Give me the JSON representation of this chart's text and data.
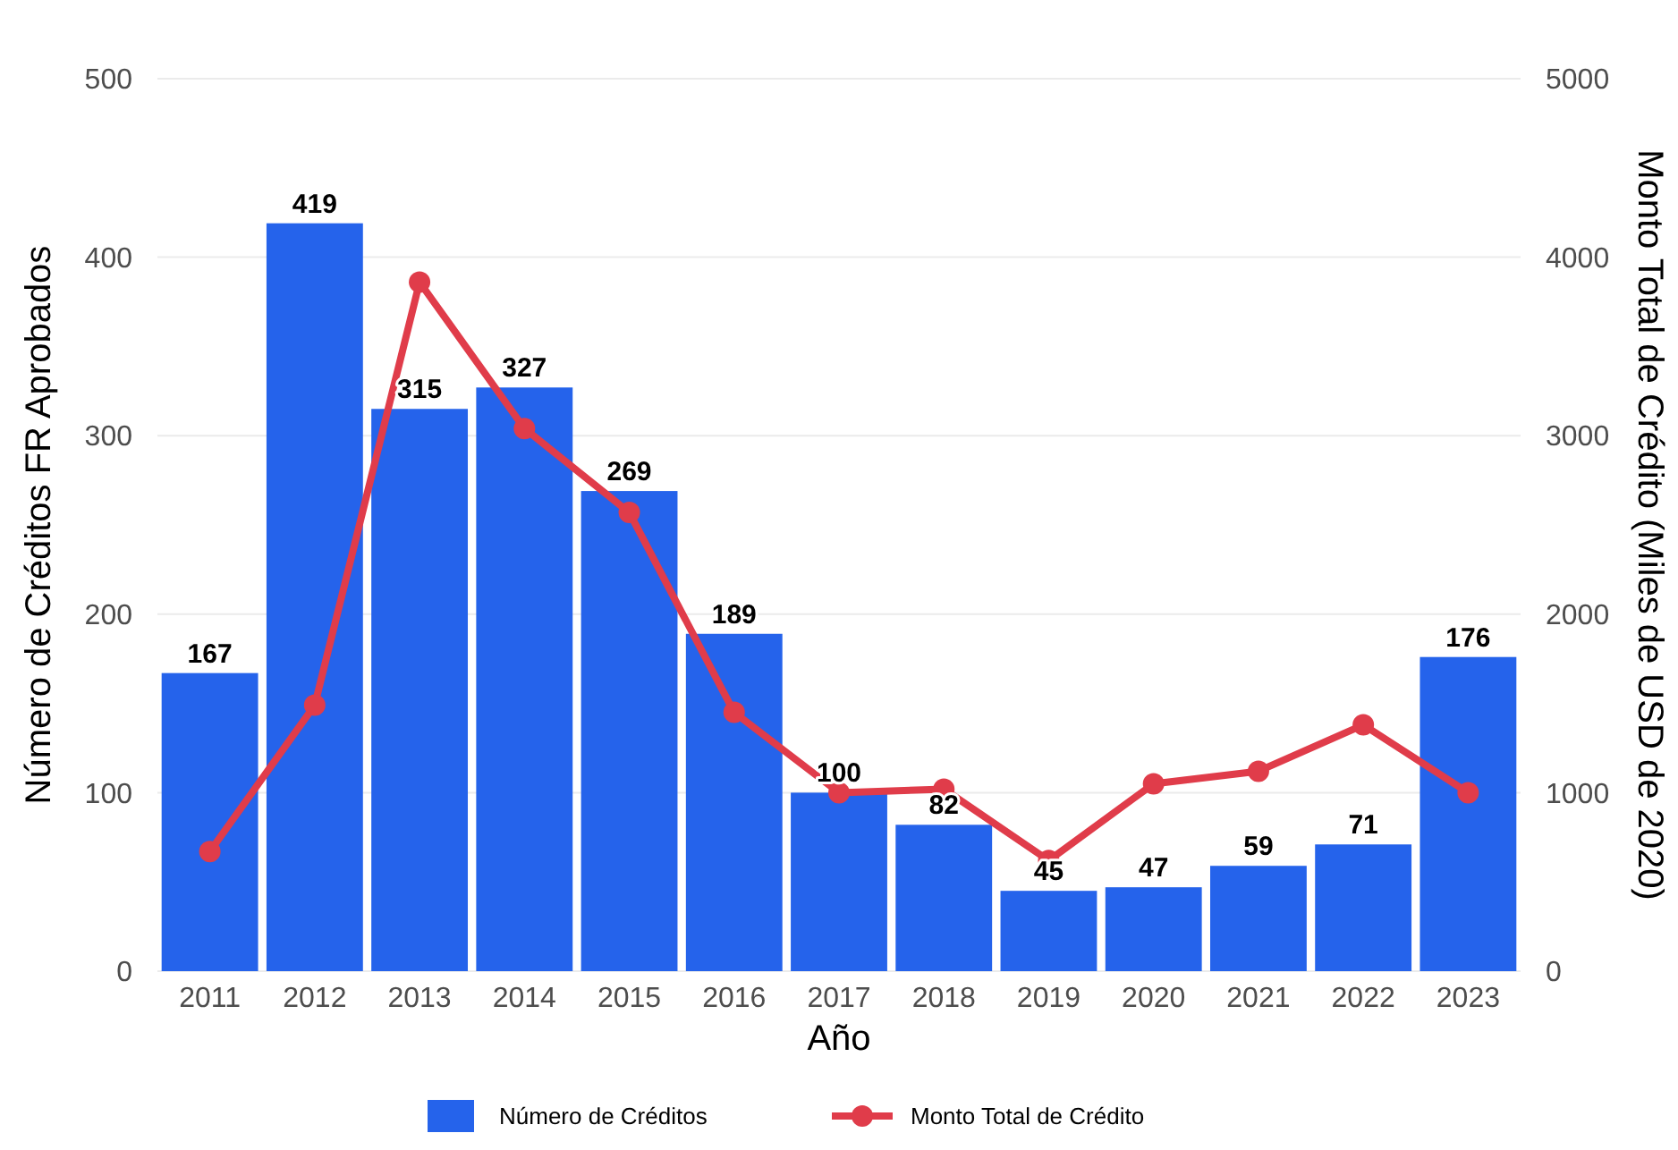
{
  "chart_data": {
    "type": "bar",
    "xlabel": "Año",
    "ylabel": "Número de Créditos FR Aprobados",
    "y2label": "Monto Total de Crédito (Miles de USD de 2020)",
    "categories": [
      "2011",
      "2012",
      "2013",
      "2014",
      "2015",
      "2016",
      "2017",
      "2018",
      "2019",
      "2020",
      "2021",
      "2022",
      "2023"
    ],
    "series": [
      {
        "name": "Número de Créditos",
        "color": "#2563eb",
        "values": [
          167,
          419,
          315,
          327,
          269,
          189,
          100,
          82,
          45,
          47,
          59,
          71,
          176
        ],
        "value_labels": [
          "167",
          "419",
          "315",
          "327",
          "269",
          "189",
          "100",
          "82",
          "45",
          "47",
          "59",
          "71",
          "176"
        ]
      },
      {
        "name": "Monto Total de Crédito",
        "type": "line",
        "axis": "y2",
        "color": "#e03c4a",
        "marker": "circle",
        "values": [
          670,
          1490,
          3860,
          3040,
          2570,
          1450,
          1000,
          1020,
          620,
          1050,
          1120,
          1380,
          1000
        ]
      }
    ],
    "ylim": [
      0,
      500
    ],
    "yticks": [
      0,
      100,
      200,
      300,
      400,
      500
    ],
    "y2lim": [
      0,
      5000
    ],
    "y2ticks": [
      0,
      1000,
      2000,
      3000,
      4000,
      5000
    ],
    "grid": "y",
    "legend": "bottom"
  }
}
